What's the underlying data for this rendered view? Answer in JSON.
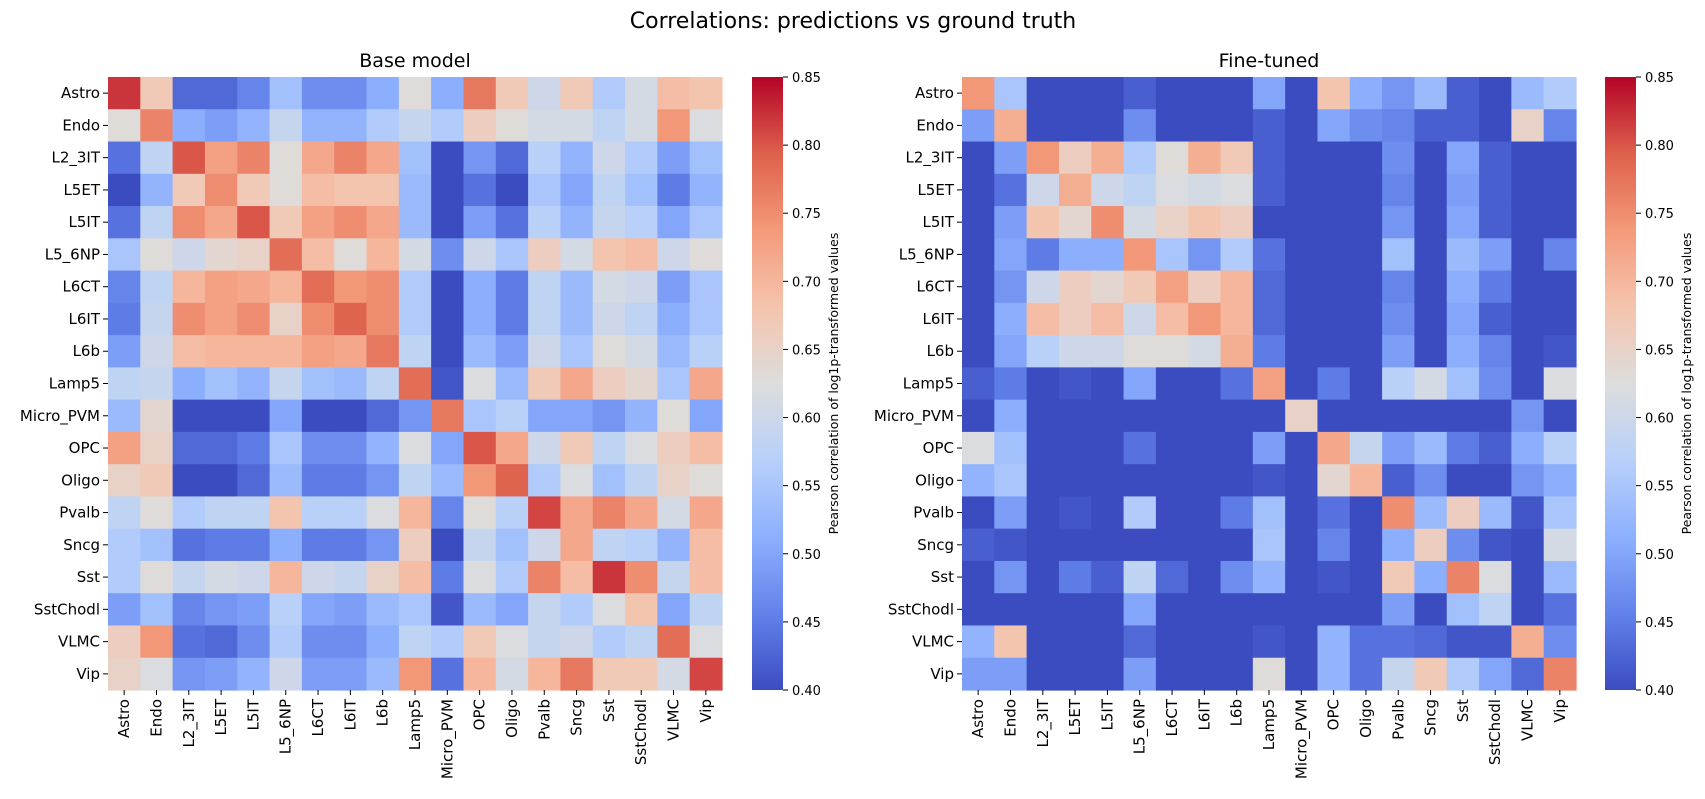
{
  "suptitle": "Correlations: predictions vs ground truth",
  "colormap": "coolwarm",
  "colormap_stops": [
    "#3b4cc0",
    "#6282ea",
    "#8db0fe",
    "#b8d0f9",
    "#dddddd",
    "#f5c4ad",
    "#f49a7b",
    "#de604d",
    "#b40426"
  ],
  "chart_data": [
    {
      "type": "heatmap",
      "title": "Base model",
      "x": [
        "Astro",
        "Endo",
        "L2_3IT",
        "L5ET",
        "L5IT",
        "L5_6NP",
        "L6CT",
        "L6IT",
        "L6b",
        "Lamp5",
        "Micro_PVM",
        "OPC",
        "Oligo",
        "Pvalb",
        "Sncg",
        "Sst",
        "SstChodl",
        "VLMC",
        "Vip"
      ],
      "y": [
        "Astro",
        "Endo",
        "L2_3IT",
        "L5ET",
        "L5IT",
        "L5_6NP",
        "L6CT",
        "L6IT",
        "L6b",
        "Lamp5",
        "Micro_PVM",
        "OPC",
        "Oligo",
        "Pvalb",
        "Sncg",
        "Sst",
        "SstChodl",
        "VLMC",
        "Vip"
      ],
      "vmin": 0.4,
      "vmax": 0.85,
      "colorbar_label": "Pearson correlation of log1p-transformed values",
      "colorbar_ticks": [
        "0.40",
        "0.45",
        "0.50",
        "0.55",
        "0.60",
        "0.65",
        "0.70",
        "0.75",
        "0.80",
        "0.85"
      ],
      "values": [
        [
          0.82,
          0.67,
          0.43,
          0.43,
          0.46,
          0.54,
          0.47,
          0.47,
          0.51,
          0.63,
          0.51,
          0.77,
          0.67,
          0.6,
          0.67,
          0.56,
          0.61,
          0.69,
          0.68
        ],
        [
          0.63,
          0.76,
          0.51,
          0.49,
          0.52,
          0.59,
          0.52,
          0.52,
          0.56,
          0.59,
          0.56,
          0.66,
          0.63,
          0.61,
          0.61,
          0.58,
          0.61,
          0.74,
          0.62
        ],
        [
          0.44,
          0.58,
          0.8,
          0.73,
          0.76,
          0.63,
          0.72,
          0.76,
          0.72,
          0.54,
          0.4,
          0.48,
          0.43,
          0.57,
          0.52,
          0.6,
          0.56,
          0.49,
          0.54
        ],
        [
          0.4,
          0.52,
          0.67,
          0.75,
          0.67,
          0.63,
          0.69,
          0.68,
          0.68,
          0.53,
          0.4,
          0.44,
          0.4,
          0.55,
          0.5,
          0.58,
          0.54,
          0.45,
          0.52
        ],
        [
          0.44,
          0.58,
          0.75,
          0.72,
          0.8,
          0.67,
          0.73,
          0.75,
          0.72,
          0.53,
          0.4,
          0.49,
          0.44,
          0.57,
          0.52,
          0.59,
          0.57,
          0.5,
          0.55
        ],
        [
          0.55,
          0.63,
          0.6,
          0.64,
          0.65,
          0.78,
          0.69,
          0.63,
          0.7,
          0.61,
          0.47,
          0.6,
          0.55,
          0.66,
          0.61,
          0.68,
          0.69,
          0.6,
          0.63
        ],
        [
          0.46,
          0.58,
          0.7,
          0.73,
          0.72,
          0.7,
          0.78,
          0.74,
          0.75,
          0.56,
          0.4,
          0.51,
          0.45,
          0.58,
          0.53,
          0.61,
          0.6,
          0.49,
          0.55
        ],
        [
          0.45,
          0.59,
          0.75,
          0.73,
          0.75,
          0.65,
          0.75,
          0.79,
          0.75,
          0.56,
          0.4,
          0.51,
          0.45,
          0.58,
          0.53,
          0.6,
          0.58,
          0.51,
          0.55
        ],
        [
          0.49,
          0.6,
          0.69,
          0.7,
          0.7,
          0.7,
          0.73,
          0.72,
          0.77,
          0.58,
          0.4,
          0.53,
          0.49,
          0.6,
          0.55,
          0.63,
          0.61,
          0.53,
          0.57
        ],
        [
          0.58,
          0.59,
          0.51,
          0.54,
          0.52,
          0.59,
          0.54,
          0.53,
          0.58,
          0.78,
          0.41,
          0.62,
          0.53,
          0.67,
          0.72,
          0.66,
          0.64,
          0.55,
          0.72
        ],
        [
          0.53,
          0.64,
          0.4,
          0.4,
          0.4,
          0.5,
          0.4,
          0.4,
          0.43,
          0.48,
          0.77,
          0.55,
          0.57,
          0.5,
          0.5,
          0.48,
          0.52,
          0.63,
          0.5
        ],
        [
          0.73,
          0.65,
          0.43,
          0.43,
          0.45,
          0.55,
          0.47,
          0.47,
          0.52,
          0.62,
          0.5,
          0.8,
          0.72,
          0.6,
          0.67,
          0.58,
          0.62,
          0.66,
          0.69
        ],
        [
          0.65,
          0.67,
          0.4,
          0.4,
          0.43,
          0.53,
          0.45,
          0.45,
          0.48,
          0.58,
          0.53,
          0.74,
          0.79,
          0.56,
          0.62,
          0.54,
          0.58,
          0.65,
          0.63
        ],
        [
          0.58,
          0.63,
          0.56,
          0.58,
          0.58,
          0.68,
          0.57,
          0.57,
          0.62,
          0.7,
          0.46,
          0.63,
          0.57,
          0.81,
          0.72,
          0.76,
          0.72,
          0.61,
          0.72
        ],
        [
          0.56,
          0.54,
          0.44,
          0.45,
          0.45,
          0.51,
          0.45,
          0.45,
          0.48,
          0.66,
          0.4,
          0.59,
          0.54,
          0.6,
          0.72,
          0.58,
          0.57,
          0.52,
          0.69
        ],
        [
          0.56,
          0.63,
          0.59,
          0.61,
          0.6,
          0.7,
          0.6,
          0.59,
          0.65,
          0.69,
          0.45,
          0.62,
          0.56,
          0.76,
          0.69,
          0.82,
          0.75,
          0.59,
          0.69
        ],
        [
          0.49,
          0.54,
          0.46,
          0.48,
          0.49,
          0.57,
          0.5,
          0.49,
          0.53,
          0.55,
          0.41,
          0.53,
          0.5,
          0.59,
          0.56,
          0.62,
          0.68,
          0.5,
          0.58
        ],
        [
          0.66,
          0.74,
          0.44,
          0.43,
          0.47,
          0.56,
          0.47,
          0.47,
          0.51,
          0.58,
          0.56,
          0.67,
          0.62,
          0.59,
          0.6,
          0.56,
          0.58,
          0.78,
          0.62
        ],
        [
          0.65,
          0.62,
          0.48,
          0.49,
          0.52,
          0.6,
          0.49,
          0.49,
          0.53,
          0.74,
          0.44,
          0.7,
          0.61,
          0.7,
          0.77,
          0.67,
          0.67,
          0.61,
          0.81
        ]
      ]
    },
    {
      "type": "heatmap",
      "title": "Fine-tuned",
      "x": [
        "Astro",
        "Endo",
        "L2_3IT",
        "L5ET",
        "L5IT",
        "L5_6NP",
        "L6CT",
        "L6IT",
        "L6b",
        "Lamp5",
        "Micro_PVM",
        "OPC",
        "Oligo",
        "Pvalb",
        "Sncg",
        "Sst",
        "SstChodl",
        "VLMC",
        "Vip"
      ],
      "y": [
        "Astro",
        "Endo",
        "L2_3IT",
        "L5ET",
        "L5IT",
        "L5_6NP",
        "L6CT",
        "L6IT",
        "L6b",
        "Lamp5",
        "Micro_PVM",
        "OPC",
        "Oligo",
        "Pvalb",
        "Sncg",
        "Sst",
        "SstChodl",
        "VLMC",
        "Vip"
      ],
      "vmin": 0.4,
      "vmax": 0.85,
      "colorbar_label": "Pearson correlation of log1p-transformed values",
      "colorbar_ticks": [
        "0.40",
        "0.45",
        "0.50",
        "0.55",
        "0.60",
        "0.65",
        "0.70",
        "0.75",
        "0.80",
        "0.85"
      ],
      "values": [
        [
          0.74,
          0.55,
          0.4,
          0.4,
          0.4,
          0.42,
          0.4,
          0.4,
          0.4,
          0.5,
          0.4,
          0.68,
          0.51,
          0.48,
          0.53,
          0.42,
          0.4,
          0.53,
          0.56
        ],
        [
          0.49,
          0.71,
          0.4,
          0.4,
          0.4,
          0.47,
          0.4,
          0.4,
          0.4,
          0.42,
          0.4,
          0.5,
          0.47,
          0.46,
          0.42,
          0.42,
          0.4,
          0.65,
          0.46
        ],
        [
          0.4,
          0.49,
          0.74,
          0.66,
          0.71,
          0.56,
          0.63,
          0.71,
          0.67,
          0.42,
          0.4,
          0.4,
          0.4,
          0.47,
          0.4,
          0.5,
          0.42,
          0.4,
          0.4
        ],
        [
          0.4,
          0.44,
          0.6,
          0.71,
          0.6,
          0.58,
          0.62,
          0.61,
          0.62,
          0.42,
          0.4,
          0.4,
          0.4,
          0.46,
          0.4,
          0.49,
          0.42,
          0.4,
          0.4
        ],
        [
          0.4,
          0.49,
          0.68,
          0.64,
          0.75,
          0.61,
          0.65,
          0.68,
          0.66,
          0.4,
          0.4,
          0.4,
          0.4,
          0.48,
          0.4,
          0.5,
          0.42,
          0.4,
          0.4
        ],
        [
          0.4,
          0.5,
          0.45,
          0.51,
          0.51,
          0.74,
          0.55,
          0.48,
          0.56,
          0.44,
          0.4,
          0.4,
          0.4,
          0.54,
          0.4,
          0.53,
          0.49,
          0.4,
          0.46
        ],
        [
          0.4,
          0.48,
          0.6,
          0.66,
          0.64,
          0.67,
          0.73,
          0.66,
          0.7,
          0.43,
          0.4,
          0.4,
          0.4,
          0.46,
          0.4,
          0.51,
          0.45,
          0.4,
          0.4
        ],
        [
          0.4,
          0.51,
          0.69,
          0.66,
          0.69,
          0.6,
          0.69,
          0.74,
          0.7,
          0.43,
          0.4,
          0.4,
          0.4,
          0.47,
          0.4,
          0.5,
          0.42,
          0.4,
          0.4
        ],
        [
          0.4,
          0.5,
          0.57,
          0.6,
          0.6,
          0.63,
          0.63,
          0.61,
          0.71,
          0.45,
          0.4,
          0.4,
          0.4,
          0.49,
          0.4,
          0.51,
          0.46,
          0.4,
          0.41
        ],
        [
          0.42,
          0.45,
          0.4,
          0.41,
          0.4,
          0.5,
          0.4,
          0.4,
          0.44,
          0.73,
          0.4,
          0.45,
          0.4,
          0.57,
          0.61,
          0.54,
          0.47,
          0.4,
          0.62
        ],
        [
          0.4,
          0.51,
          0.4,
          0.4,
          0.4,
          0.4,
          0.4,
          0.4,
          0.4,
          0.4,
          0.65,
          0.4,
          0.4,
          0.4,
          0.4,
          0.4,
          0.4,
          0.48,
          0.4
        ],
        [
          0.62,
          0.54,
          0.4,
          0.4,
          0.4,
          0.44,
          0.4,
          0.4,
          0.4,
          0.49,
          0.4,
          0.72,
          0.59,
          0.49,
          0.53,
          0.45,
          0.42,
          0.51,
          0.57
        ],
        [
          0.52,
          0.55,
          0.4,
          0.4,
          0.4,
          0.4,
          0.4,
          0.4,
          0.4,
          0.41,
          0.4,
          0.64,
          0.7,
          0.42,
          0.47,
          0.4,
          0.4,
          0.48,
          0.51
        ],
        [
          0.4,
          0.49,
          0.4,
          0.41,
          0.4,
          0.56,
          0.4,
          0.4,
          0.45,
          0.54,
          0.4,
          0.44,
          0.4,
          0.75,
          0.53,
          0.66,
          0.53,
          0.41,
          0.55
        ],
        [
          0.42,
          0.41,
          0.4,
          0.4,
          0.4,
          0.4,
          0.4,
          0.4,
          0.4,
          0.55,
          0.4,
          0.46,
          0.4,
          0.51,
          0.66,
          0.47,
          0.41,
          0.4,
          0.61
        ],
        [
          0.4,
          0.48,
          0.4,
          0.45,
          0.42,
          0.58,
          0.43,
          0.4,
          0.47,
          0.52,
          0.4,
          0.41,
          0.4,
          0.67,
          0.51,
          0.76,
          0.62,
          0.4,
          0.53
        ],
        [
          0.4,
          0.4,
          0.4,
          0.4,
          0.4,
          0.5,
          0.4,
          0.4,
          0.4,
          0.4,
          0.4,
          0.4,
          0.4,
          0.49,
          0.4,
          0.54,
          0.58,
          0.4,
          0.44
        ],
        [
          0.52,
          0.68,
          0.4,
          0.4,
          0.4,
          0.43,
          0.4,
          0.4,
          0.4,
          0.41,
          0.4,
          0.52,
          0.44,
          0.44,
          0.43,
          0.41,
          0.41,
          0.71,
          0.47
        ],
        [
          0.49,
          0.49,
          0.4,
          0.4,
          0.4,
          0.49,
          0.4,
          0.4,
          0.4,
          0.63,
          0.4,
          0.52,
          0.44,
          0.59,
          0.67,
          0.56,
          0.5,
          0.43,
          0.76
        ]
      ]
    }
  ]
}
